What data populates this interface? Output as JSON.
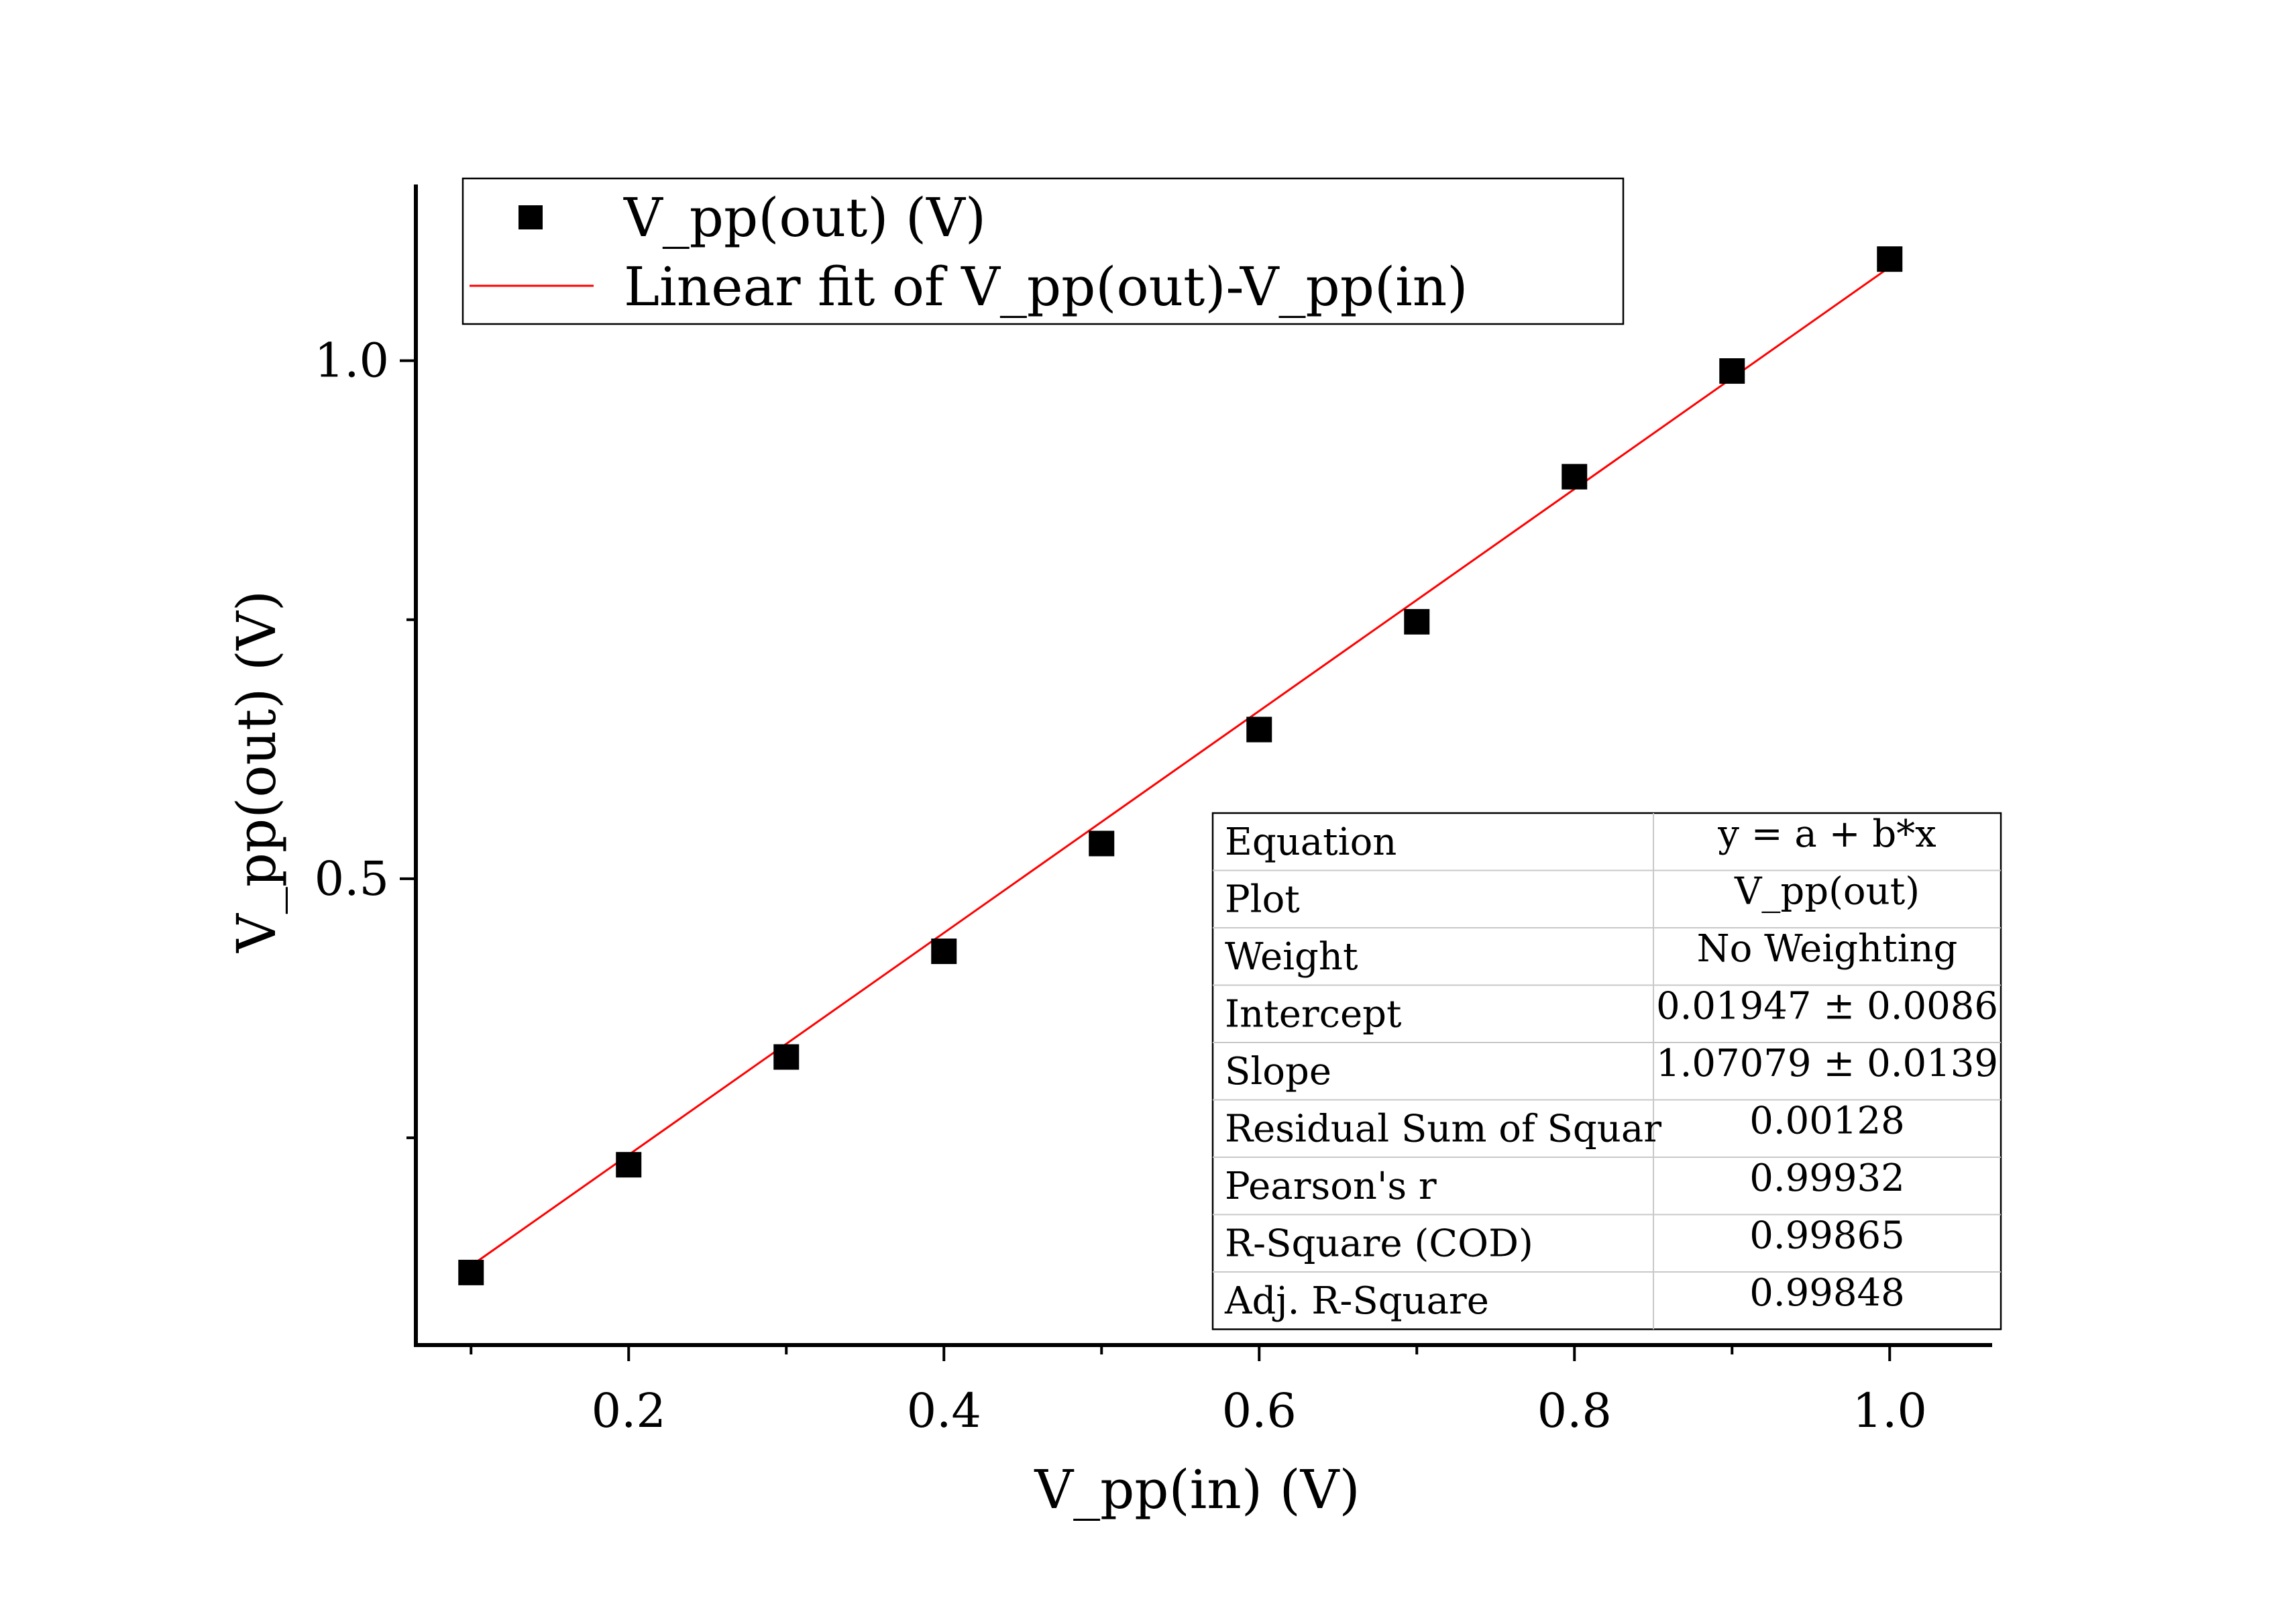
{
  "chart_data": {
    "type": "scatter",
    "xlabel": "V_pp(in) (V)",
    "ylabel": "V_pp(out) (V)",
    "xlim": [
      0.065,
      1.065
    ],
    "ylim": [
      0.05,
      1.17
    ],
    "x_ticks": [
      0.2,
      0.4,
      0.6,
      0.8,
      1.0
    ],
    "x_tick_labels": [
      "0.2",
      "0.4",
      "0.6",
      "0.8",
      "1.0"
    ],
    "x_minor_ticks": [
      0.1,
      0.3,
      0.5,
      0.7,
      0.9
    ],
    "y_ticks": [
      0.5,
      1.0
    ],
    "y_tick_labels": [
      "0.5",
      "1.0"
    ],
    "y_minor_ticks": [
      0.25,
      0.75
    ],
    "grid": false,
    "legend_position": "top-left",
    "series": [
      {
        "name": "V_pp(out) (V)",
        "kind": "scatter",
        "marker": "square",
        "color": "#000000",
        "x": [
          0.1,
          0.2,
          0.3,
          0.4,
          0.5,
          0.6,
          0.7,
          0.8,
          0.9,
          1.0
        ],
        "y": [
          0.12,
          0.224,
          0.328,
          0.43,
          0.534,
          0.644,
          0.748,
          0.888,
          0.99,
          1.098
        ]
      },
      {
        "name": "Linear fit of V_pp(out)-V_pp(in)",
        "kind": "line",
        "color": "#ff0000",
        "x": [
          0.1,
          1.0
        ],
        "y": [
          0.12655,
          1.09026
        ]
      }
    ],
    "fit_table": {
      "rows": [
        {
          "label": "Equation",
          "value": "y = a + b*x"
        },
        {
          "label": "Plot",
          "value": "V_pp(out)"
        },
        {
          "label": "Weight",
          "value": "No Weighting"
        },
        {
          "label": "Intercept",
          "value": "0.01947 ± 0.0086"
        },
        {
          "label": "Slope",
          "value": "1.07079 ± 0.0139"
        },
        {
          "label": "Residual Sum of Squar",
          "value": "0.00128"
        },
        {
          "label": "Pearson's r",
          "value": "0.99932"
        },
        {
          "label": "R-Square (COD)",
          "value": "0.99865"
        },
        {
          "label": "Adj. R-Square",
          "value": "0.99848"
        }
      ]
    }
  }
}
